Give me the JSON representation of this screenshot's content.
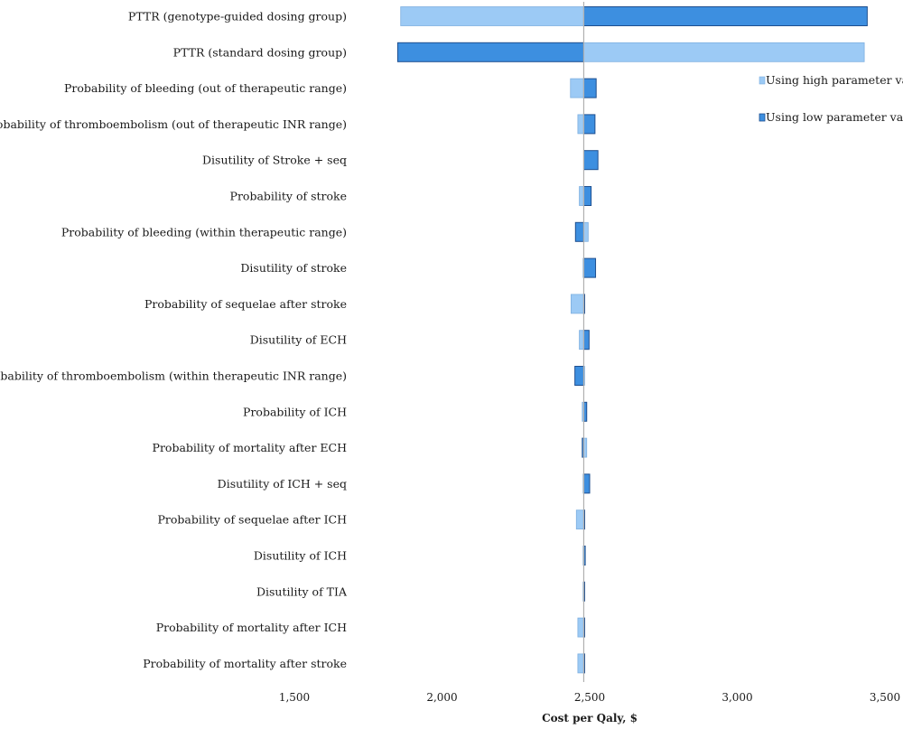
{
  "chart_data": {
    "type": "tornado",
    "title": "",
    "xlabel": "Cost per Qaly, $",
    "ylabel": "",
    "xlim": [
      1500,
      3500
    ],
    "xticks": [
      1500,
      2000,
      2500,
      3000,
      3500
    ],
    "xtick_labels": [
      "1,500",
      "2,000",
      "2,500",
      "3,000",
      "3,500"
    ],
    "base_value": 2480,
    "legend_position": "top-right",
    "colors": {
      "high": "#9ccaf5",
      "low": "#3d8fe0",
      "low_border": "#1e4f8f",
      "high_border": "#7fb0e0",
      "baseline": "#b0b0b0"
    },
    "series": [
      {
        "name": "Using high parameter value",
        "key": "high"
      },
      {
        "name": "Using low parameter value",
        "key": "low"
      }
    ],
    "categories": [
      "PTTR (genotype-guided dosing group)",
      "PTTR (standard dosing group)",
      "Probability of bleeding (out of therapeutic range)",
      "Probability of thromboembolism (out of therapeutic  INR range)",
      "Disutility of Stroke + seq",
      "Probability of stroke",
      "Probability of bleeding (within therapeutic range)",
      "Disutility of stroke",
      "Probability of sequelae after stroke",
      "Disutility of ECH",
      "Probability of thromboembolism (within therapeutic INR range)",
      "Probability of ICH",
      "Probability of mortality after ECH",
      "Disutility of ICH + seq",
      "Probability of sequelae after ICH",
      "Disutility of ICH",
      "Disutility of TIA",
      "Probability  of mortality after ICH",
      "Probability  of mortality after stroke"
    ],
    "high_values": [
      1860,
      3430,
      2435,
      2460,
      2480,
      2465,
      2495,
      2478,
      2437,
      2465,
      2480,
      2475,
      2490,
      2478,
      2455,
      2478,
      2478,
      2460,
      2460
    ],
    "low_values": [
      3440,
      1850,
      2522,
      2518,
      2528,
      2505,
      2452,
      2520,
      2480,
      2498,
      2450,
      2490,
      2475,
      2500,
      2480,
      2485,
      2483,
      2480,
      2480
    ]
  }
}
